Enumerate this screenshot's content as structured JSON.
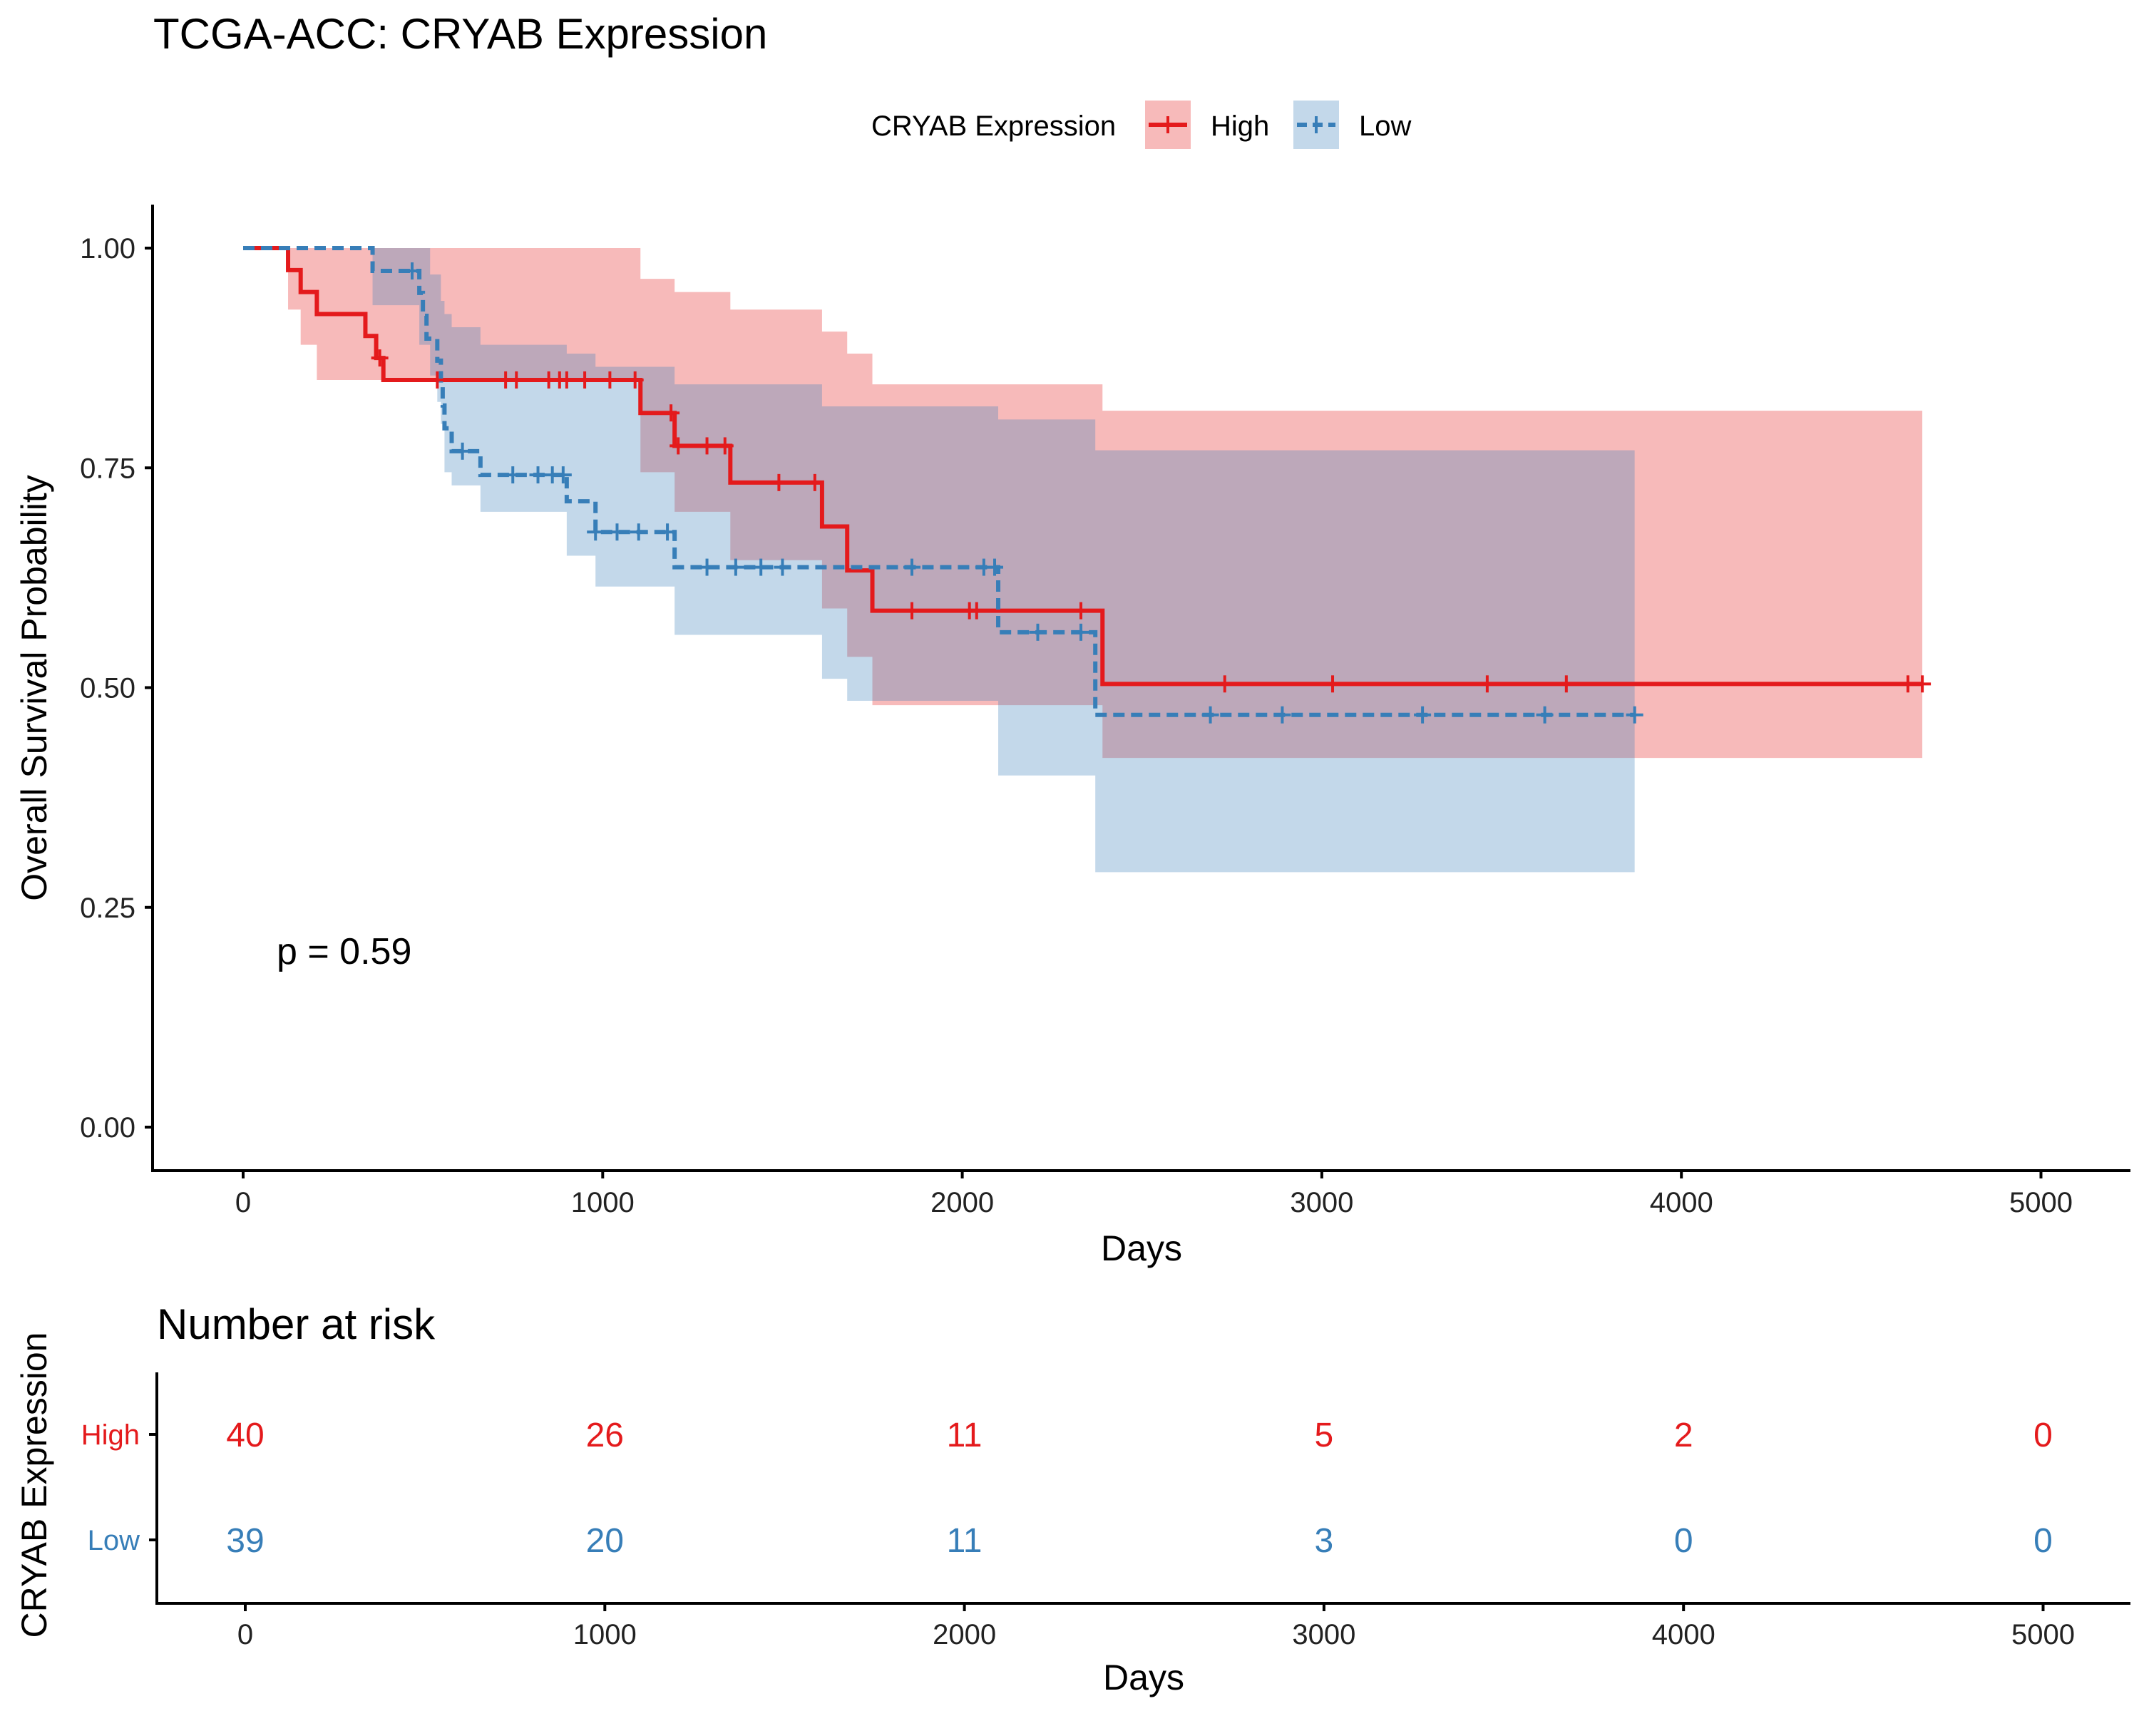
{
  "chart_data": {
    "type": "line",
    "subtype": "kaplan-meier",
    "title": "TCGA-ACC: CRYAB Expression",
    "xlabel": "Days",
    "ylabel": "Overall Survival Probability",
    "xlim": [
      -250,
      5250
    ],
    "ylim": [
      -0.05,
      1.05
    ],
    "x_ticks": [
      "0",
      "1000",
      "2000",
      "3000",
      "4000",
      "5000"
    ],
    "y_ticks": [
      "0.00",
      "0.25",
      "0.50",
      "0.75",
      "1.00"
    ],
    "grid": false,
    "legend": {
      "title": "CRYAB Expression",
      "placement": "top",
      "entries": [
        "High",
        "Low"
      ]
    },
    "annotation": "p = 0.59",
    "series": [
      {
        "name": "High",
        "color": "#E41A1C",
        "dash": "solid",
        "steps": [
          [
            0,
            1.0
          ],
          [
            125,
            0.975
          ],
          [
            160,
            0.95
          ],
          [
            205,
            0.925
          ],
          [
            340,
            0.9
          ],
          [
            370,
            0.875
          ],
          [
            390,
            0.85
          ],
          [
            1105,
            0.8125
          ],
          [
            1200,
            0.775
          ],
          [
            1355,
            0.7333
          ],
          [
            1610,
            0.6833
          ],
          [
            1680,
            0.6333
          ],
          [
            1750,
            0.5875
          ],
          [
            2390,
            0.5042
          ],
          [
            4670,
            0.5042
          ]
        ],
        "ci_steps": [
          [
            0,
            1.0,
            1.0
          ],
          [
            125,
            0.93,
            1.0
          ],
          [
            160,
            0.89,
            1.0
          ],
          [
            205,
            0.85,
            1.0
          ],
          [
            1105,
            0.745,
            0.965
          ],
          [
            1200,
            0.7,
            0.95
          ],
          [
            1355,
            0.645,
            0.93
          ],
          [
            1610,
            0.59,
            0.905
          ],
          [
            1680,
            0.535,
            0.88
          ],
          [
            1750,
            0.48,
            0.845
          ],
          [
            2390,
            0.42,
            0.815
          ],
          [
            4670,
            0.32,
            0.785
          ]
        ],
        "censor_x": [
          380,
          540,
          730,
          760,
          850,
          880,
          900,
          950,
          1020,
          1090,
          1190,
          1210,
          1290,
          1340,
          1490,
          1590,
          1860,
          2020,
          2040,
          2330,
          2730,
          3030,
          3460,
          3680,
          4630,
          4670
        ]
      },
      {
        "name": "Low",
        "color": "#377EB8",
        "dash": "dashed",
        "steps": [
          [
            0,
            1.0
          ],
          [
            360,
            0.974
          ],
          [
            490,
            0.949
          ],
          [
            500,
            0.923
          ],
          [
            510,
            0.897
          ],
          [
            540,
            0.872
          ],
          [
            550,
            0.846
          ],
          [
            555,
            0.821
          ],
          [
            560,
            0.795
          ],
          [
            580,
            0.769
          ],
          [
            660,
            0.742
          ],
          [
            900,
            0.712
          ],
          [
            980,
            0.677
          ],
          [
            1200,
            0.637
          ],
          [
            2100,
            0.563
          ],
          [
            2370,
            0.469
          ],
          [
            3870,
            0.469
          ]
        ],
        "ci_steps": [
          [
            0,
            1.0,
            1.0
          ],
          [
            360,
            0.935,
            1.0
          ],
          [
            490,
            0.89,
            1.0
          ],
          [
            520,
            0.855,
            0.97
          ],
          [
            540,
            0.825,
            0.97
          ],
          [
            550,
            0.8,
            0.94
          ],
          [
            560,
            0.745,
            0.925
          ],
          [
            580,
            0.73,
            0.91
          ],
          [
            660,
            0.7,
            0.89
          ],
          [
            900,
            0.65,
            0.88
          ],
          [
            980,
            0.615,
            0.865
          ],
          [
            1200,
            0.56,
            0.845
          ],
          [
            1610,
            0.51,
            0.82
          ],
          [
            1680,
            0.485,
            0.82
          ],
          [
            2100,
            0.4,
            0.805
          ],
          [
            2370,
            0.29,
            0.77
          ],
          [
            3870,
            0.29,
            0.77
          ]
        ],
        "censor_x": [
          470,
          610,
          750,
          820,
          860,
          890,
          980,
          1040,
          1100,
          1180,
          1290,
          1370,
          1440,
          1500,
          1860,
          2060,
          2090,
          2210,
          2330,
          2690,
          2890,
          3280,
          3620,
          3870
        ]
      }
    ],
    "risk_table": {
      "title": "Number at risk",
      "ylabel": "CRYAB Expression",
      "xlabel": "Days",
      "times": [
        0,
        1000,
        2000,
        3000,
        4000,
        5000
      ],
      "rows": [
        {
          "name": "High",
          "color": "#E41A1C",
          "counts": [
            "40",
            "26",
            "11",
            "5",
            "2",
            "0"
          ]
        },
        {
          "name": "Low",
          "color": "#377EB8",
          "counts": [
            "39",
            "20",
            "11",
            "3",
            "0",
            "0"
          ]
        }
      ]
    }
  }
}
